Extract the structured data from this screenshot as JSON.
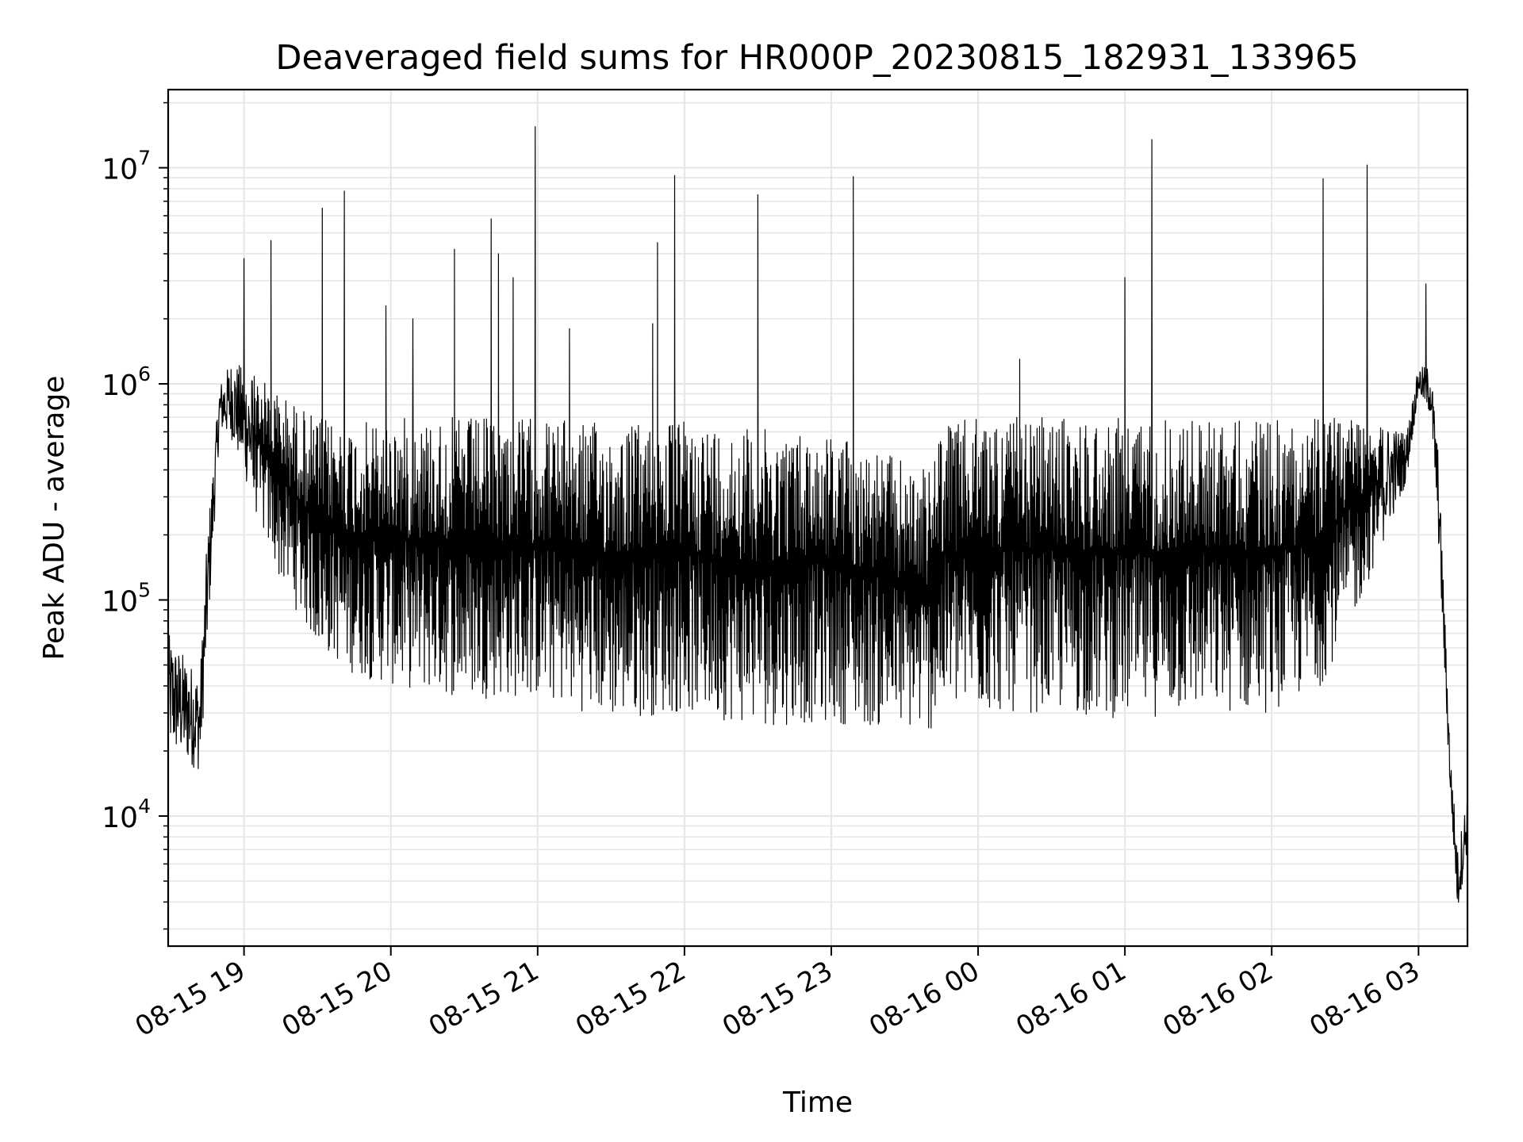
{
  "chart_data": {
    "type": "line",
    "title": "Deaveraged field sums for HR000P_20230815_182931_133965",
    "xlabel": "Time",
    "ylabel": "Peak ADU - average",
    "y_scale": "log",
    "ylim": [
      2500,
      23000000
    ],
    "xlim": [
      "2023-08-15 18:29",
      "2023-08-16 03:20"
    ],
    "grid": true,
    "legend": "none",
    "line_color": "#000000",
    "grid_color": "#e6e6e6",
    "x_ticks": [
      {
        "t": "2023-08-15 19:00",
        "label": "08-15 19"
      },
      {
        "t": "2023-08-15 20:00",
        "label": "08-15 20"
      },
      {
        "t": "2023-08-15 21:00",
        "label": "08-15 21"
      },
      {
        "t": "2023-08-15 22:00",
        "label": "08-15 22"
      },
      {
        "t": "2023-08-15 23:00",
        "label": "08-15 23"
      },
      {
        "t": "2023-08-16 00:00",
        "label": "08-16 00"
      },
      {
        "t": "2023-08-16 01:00",
        "label": "08-16 01"
      },
      {
        "t": "2023-08-16 02:00",
        "label": "08-16 02"
      },
      {
        "t": "2023-08-16 03:00",
        "label": "08-16 03"
      }
    ],
    "y_ticks": [
      {
        "value": 10000,
        "base": "10",
        "exp": "4"
      },
      {
        "value": 100000,
        "base": "10",
        "exp": "5"
      },
      {
        "value": 1000000,
        "base": "10",
        "exp": "6"
      },
      {
        "value": 10000000,
        "base": "10",
        "exp": "7"
      }
    ],
    "series": [
      {
        "values_note_free": true,
        "envelope": [
          {
            "t": "2023-08-15 18:29",
            "low": 20000,
            "high": 70000
          },
          {
            "t": "2023-08-15 18:42",
            "low": 16000,
            "high": 45000
          },
          {
            "t": "2023-08-15 18:45",
            "low": 60000,
            "high": 200000
          },
          {
            "t": "2023-08-15 18:50",
            "low": 600000,
            "high": 1000000
          },
          {
            "t": "2023-08-15 18:55",
            "low": 550000,
            "high": 1300000
          },
          {
            "t": "2023-08-15 19:05",
            "low": 250000,
            "high": 1100000
          },
          {
            "t": "2023-08-15 19:15",
            "low": 120000,
            "high": 900000
          },
          {
            "t": "2023-08-15 19:30",
            "low": 60000,
            "high": 700000
          },
          {
            "t": "2023-08-15 19:45",
            "low": 45000,
            "high": 650000
          },
          {
            "t": "2023-08-15 20:00",
            "low": 40000,
            "high": 700000
          },
          {
            "t": "2023-08-15 20:30",
            "low": 35000,
            "high": 700000
          },
          {
            "t": "2023-08-15 21:00",
            "low": 35000,
            "high": 700000
          },
          {
            "t": "2023-08-15 21:30",
            "low": 28000,
            "high": 650000
          },
          {
            "t": "2023-08-15 22:00",
            "low": 30000,
            "high": 680000
          },
          {
            "t": "2023-08-15 22:30",
            "low": 26000,
            "high": 620000
          },
          {
            "t": "2023-08-15 23:00",
            "low": 27000,
            "high": 600000
          },
          {
            "t": "2023-08-15 23:40",
            "low": 24000,
            "high": 400000
          },
          {
            "t": "2023-08-15 23:45",
            "low": 30000,
            "high": 650000
          },
          {
            "t": "2023-08-16 00:00",
            "low": 30000,
            "high": 700000
          },
          {
            "t": "2023-08-16 00:30",
            "low": 30000,
            "high": 700000
          },
          {
            "t": "2023-08-16 01:00",
            "low": 28000,
            "high": 700000
          },
          {
            "t": "2023-08-16 01:30",
            "low": 30000,
            "high": 700000
          },
          {
            "t": "2023-08-16 02:00",
            "low": 30000,
            "high": 680000
          },
          {
            "t": "2023-08-16 02:20",
            "low": 40000,
            "high": 700000
          },
          {
            "t": "2023-08-16 02:35",
            "low": 90000,
            "high": 750000
          },
          {
            "t": "2023-08-16 02:55",
            "low": 350000,
            "high": 600000
          },
          {
            "t": "2023-08-16 03:00",
            "low": 900000,
            "high": 1200000
          },
          {
            "t": "2023-08-16 03:05",
            "low": 700000,
            "high": 1200000
          },
          {
            "t": "2023-08-16 03:08",
            "low": 200000,
            "high": 500000
          },
          {
            "t": "2023-08-16 03:13",
            "low": 12000,
            "high": 20000
          },
          {
            "t": "2023-08-16 03:16",
            "low": 3500,
            "high": 7000
          },
          {
            "t": "2023-08-16 03:20",
            "low": 7000,
            "high": 13000
          }
        ],
        "spikes": [
          {
            "t": "2023-08-15 19:00",
            "value": 3800000
          },
          {
            "t": "2023-08-15 19:11",
            "value": 4600000
          },
          {
            "t": "2023-08-15 19:32",
            "value": 6500000
          },
          {
            "t": "2023-08-15 19:41",
            "value": 7800000
          },
          {
            "t": "2023-08-15 19:58",
            "value": 2300000
          },
          {
            "t": "2023-08-15 20:09",
            "value": 2000000
          },
          {
            "t": "2023-08-15 20:26",
            "value": 4200000
          },
          {
            "t": "2023-08-15 20:41",
            "value": 5800000
          },
          {
            "t": "2023-08-15 20:44",
            "value": 4000000
          },
          {
            "t": "2023-08-15 20:50",
            "value": 3100000
          },
          {
            "t": "2023-08-15 20:59",
            "value": 15500000
          },
          {
            "t": "2023-08-15 21:13",
            "value": 1800000
          },
          {
            "t": "2023-08-15 21:47",
            "value": 1900000
          },
          {
            "t": "2023-08-15 21:49",
            "value": 4500000
          },
          {
            "t": "2023-08-15 21:56",
            "value": 9200000
          },
          {
            "t": "2023-08-15 22:30",
            "value": 7500000
          },
          {
            "t": "2023-08-15 23:09",
            "value": 9100000
          },
          {
            "t": "2023-08-16 00:17",
            "value": 1300000
          },
          {
            "t": "2023-08-16 01:00",
            "value": 3100000
          },
          {
            "t": "2023-08-16 01:11",
            "value": 13500000
          },
          {
            "t": "2023-08-16 02:21",
            "value": 8900000
          },
          {
            "t": "2023-08-16 02:39",
            "value": 10300000
          },
          {
            "t": "2023-08-16 03:03",
            "value": 2900000
          }
        ]
      }
    ]
  }
}
